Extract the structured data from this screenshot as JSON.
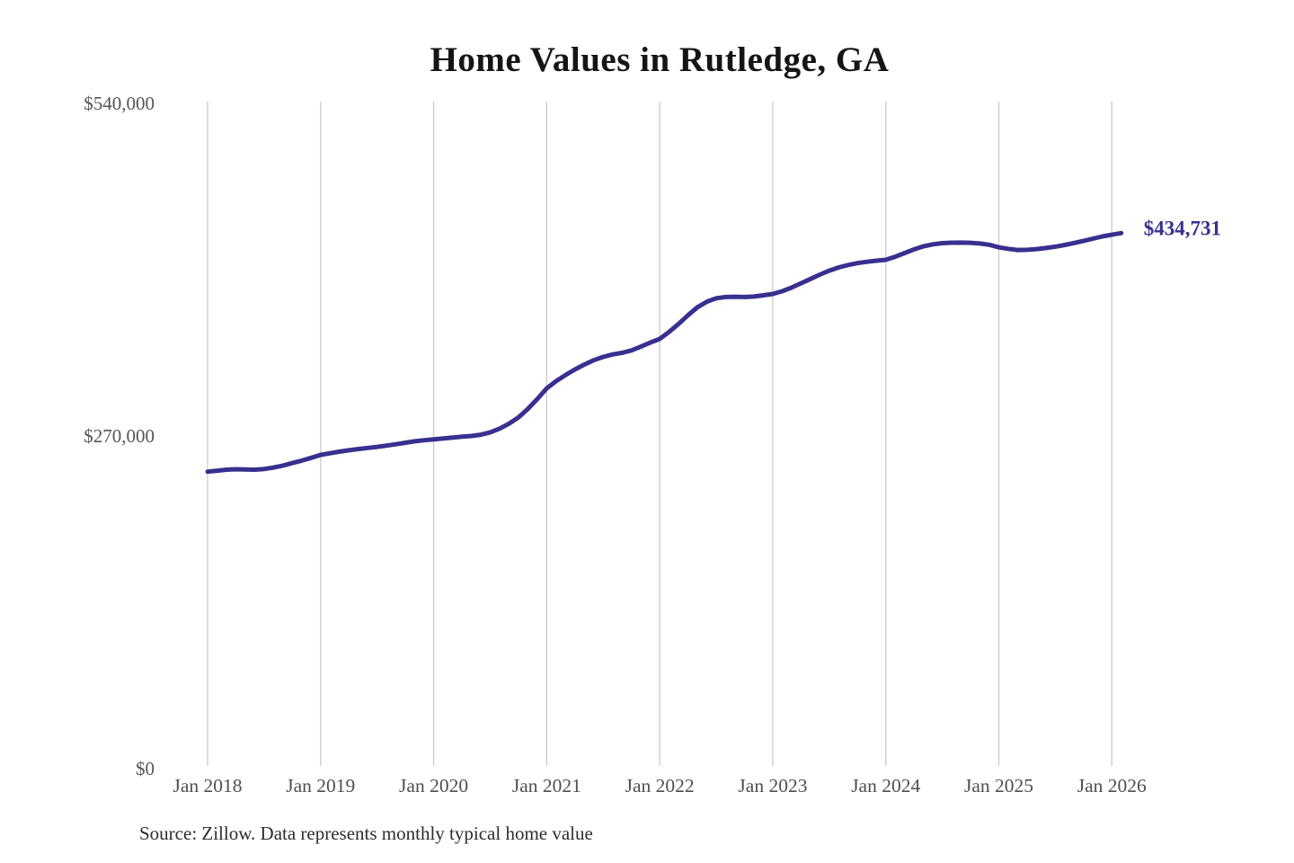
{
  "page": {
    "title": "Home Values in Rutledge, GA",
    "source_note": "Source: Zillow. Data represents monthly typical home value"
  },
  "annotation": {
    "latest_value_label": "$434,731"
  },
  "colors": {
    "line": "#37308f",
    "annotation_text": "#37308f",
    "gridline": "#cbcbcb",
    "axis_text": "#55555a",
    "title_text": "#151515",
    "source_text": "#2d2d2d",
    "background": "#ffffff"
  },
  "chart_data": {
    "type": "line",
    "title": "Home Values in Rutledge, GA",
    "xlabel": "",
    "ylabel": "",
    "grid": "vertical-only",
    "legend": "none",
    "x_axis": {
      "frequency": "monthly",
      "start": "Jan 2018",
      "end": "Feb 2026",
      "tick_labels": [
        "Jan 2018",
        "Jan 2019",
        "Jan 2020",
        "Jan 2021",
        "Jan 2022",
        "Jan 2023",
        "Jan 2024",
        "Jan 2025",
        "Jan 2026"
      ],
      "months_between_ticks": 12
    },
    "y_axis": {
      "min": 0,
      "max": 540000,
      "ticks": [
        {
          "label": "$0",
          "value": 0
        },
        {
          "label": "$270,000",
          "value": 270000
        },
        {
          "label": "$540,000",
          "value": 540000
        }
      ]
    },
    "series": [
      {
        "name": "Typical home value",
        "values": [
          241000,
          241800,
          242600,
          243000,
          242800,
          242600,
          243200,
          244400,
          246000,
          248000,
          250000,
          252300,
          254700,
          256000,
          257300,
          258400,
          259400,
          260300,
          261200,
          262200,
          263300,
          264500,
          265700,
          266600,
          267300,
          268000,
          268700,
          269400,
          270000,
          271000,
          273000,
          276000,
          280000,
          285000,
          292000,
          300000,
          308700,
          314500,
          319500,
          324000,
          328000,
          331500,
          334200,
          336200,
          337500,
          339500,
          342500,
          345800,
          348800,
          354500,
          361000,
          368000,
          374500,
          379000,
          381800,
          382800,
          383000,
          382800,
          383200,
          384200,
          385300,
          387500,
          390500,
          394000,
          397500,
          401000,
          404200,
          406800,
          408800,
          410300,
          411400,
          412300,
          413000,
          415500,
          418500,
          421500,
          424000,
          425600,
          426500,
          426900,
          427000,
          426800,
          426200,
          425200,
          423200,
          421900,
          421000,
          421100,
          421700,
          422600,
          423700,
          425100,
          426700,
          428400,
          430200,
          432000,
          433400,
          434731
        ]
      }
    ],
    "end_label": "$434,731",
    "end_value": 434731
  }
}
